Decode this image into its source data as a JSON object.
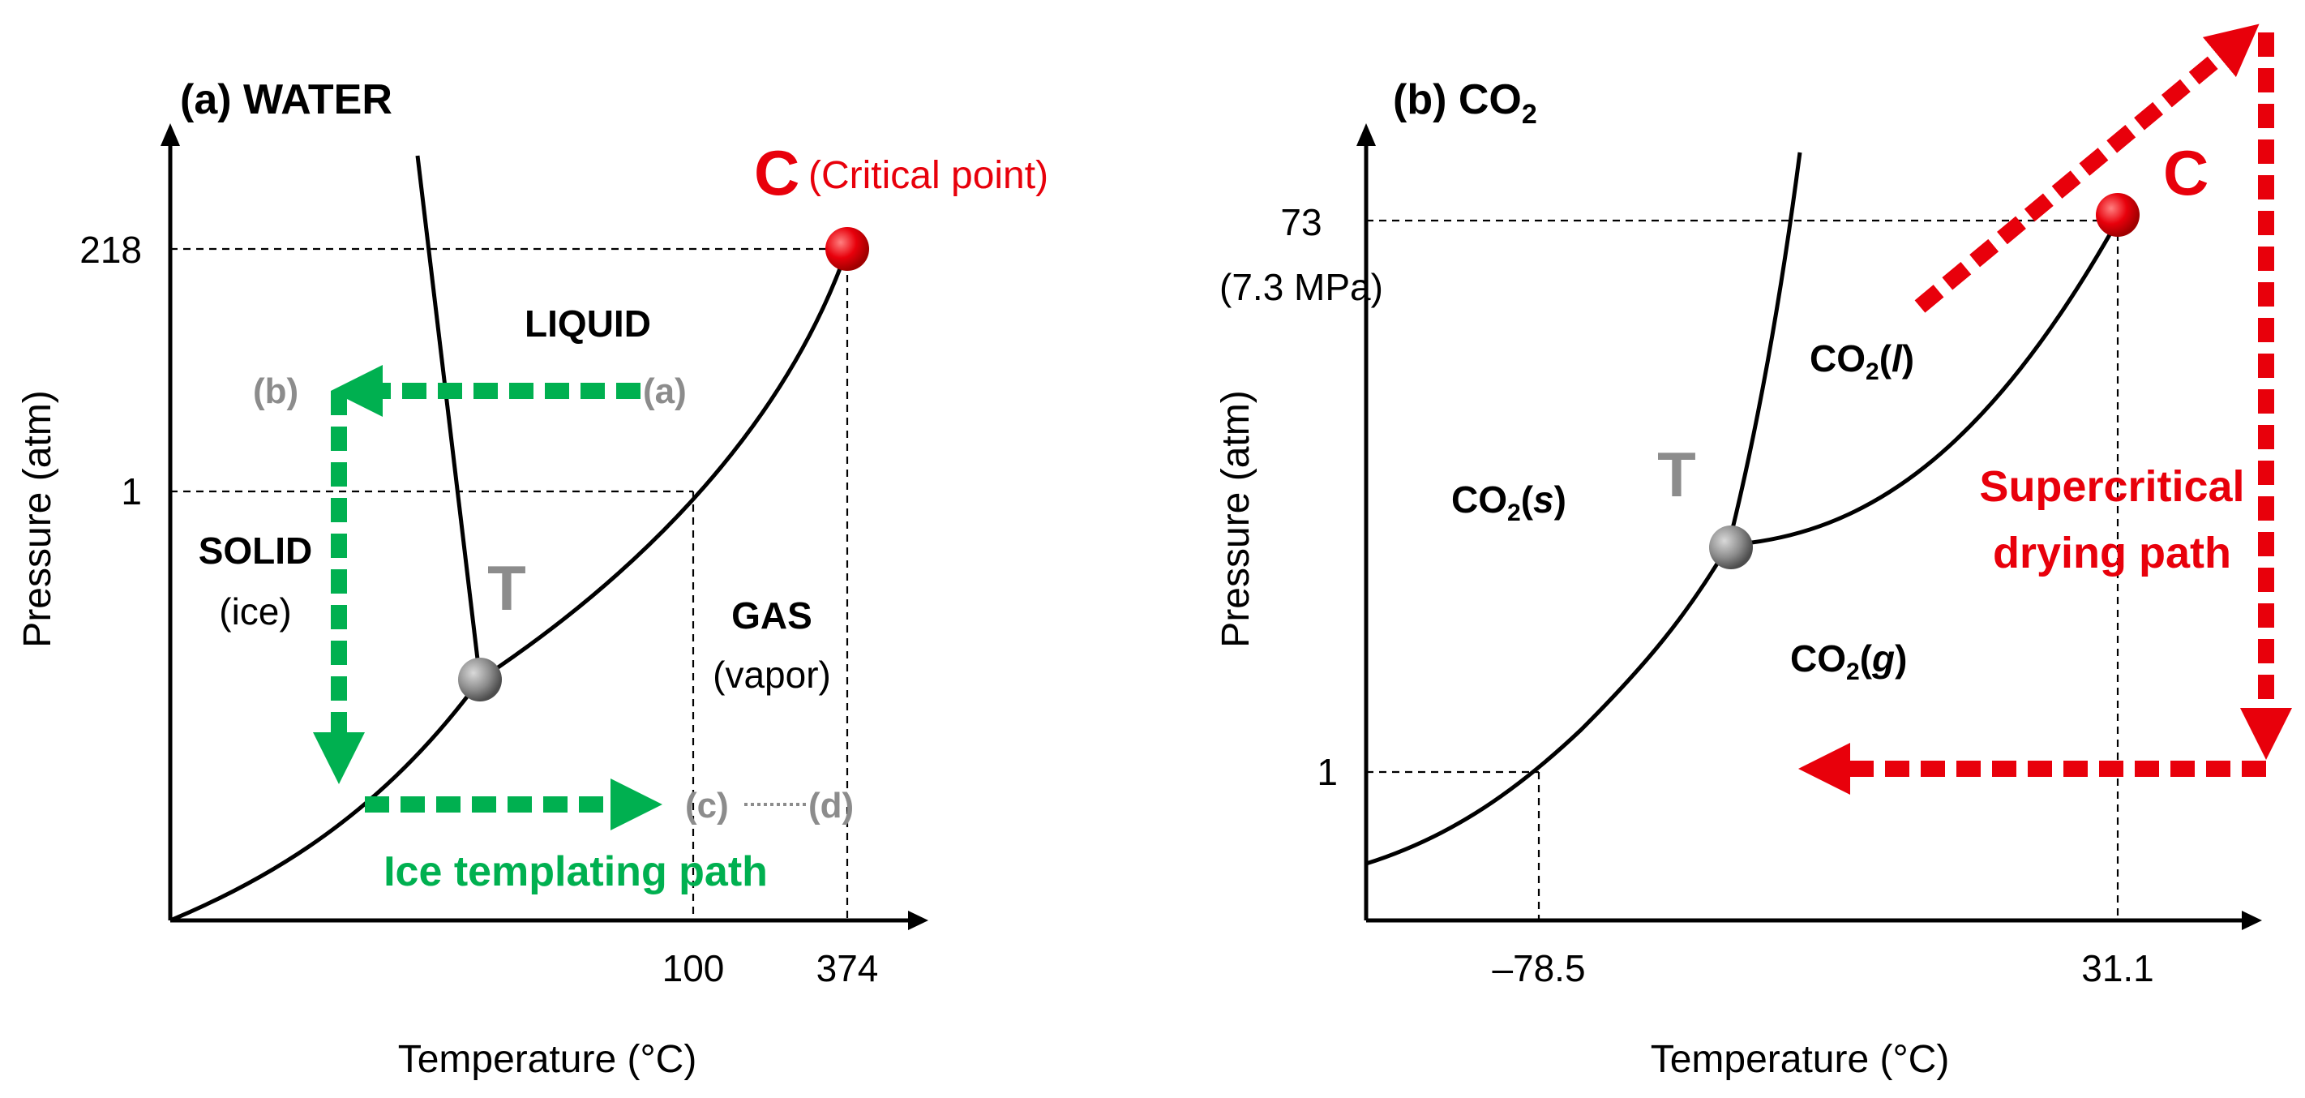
{
  "colors": {
    "green_path": "#00b050",
    "red_path": "#e8000b",
    "critical_point": "#e8000b",
    "triple_point": "#8c8c8c",
    "grey_label": "#8c8c8c"
  },
  "panel_a": {
    "title": "(a) WATER",
    "ylabel": "Pressure (atm)",
    "xlabel": "Temperature (°C)",
    "y_ticks": [
      "218",
      "1"
    ],
    "x_ticks": [
      "100",
      "374"
    ],
    "critical_letter": "C",
    "critical_note": "(Critical point)",
    "triple_letter": "T",
    "regions": {
      "liquid": "LIQUID",
      "solid": "SOLID",
      "solid_note": "(ice)",
      "gas": "GAS",
      "gas_note": "(vapor)"
    },
    "points": {
      "a": "(a)",
      "b": "(b)",
      "c": "(c)",
      "d": "(d)"
    },
    "path_label": "Ice templating path"
  },
  "panel_b": {
    "title_prefix": "(b) CO",
    "title_sub": "2",
    "ylabel": "Pressure (atm)",
    "xlabel": "Temperature (°C)",
    "y_ticks": [
      "73",
      "1"
    ],
    "y_tick_note": "(7.3 MPa)",
    "x_ticks": [
      "–78.5",
      "31.1"
    ],
    "critical_letter": "C",
    "triple_letter": "T",
    "regions": {
      "liquid": {
        "prefix": "CO",
        "sub": "2",
        "open": "(",
        "phase": "l",
        "close": ")"
      },
      "solid": {
        "prefix": "CO",
        "sub": "2",
        "open": "(",
        "phase": "s",
        "close": ")"
      },
      "gas": {
        "prefix": "CO",
        "sub": "2",
        "open": "(",
        "phase": "g",
        "close": ")"
      }
    },
    "path_label_line1": "Supercritical",
    "path_label_line2": "drying path"
  }
}
